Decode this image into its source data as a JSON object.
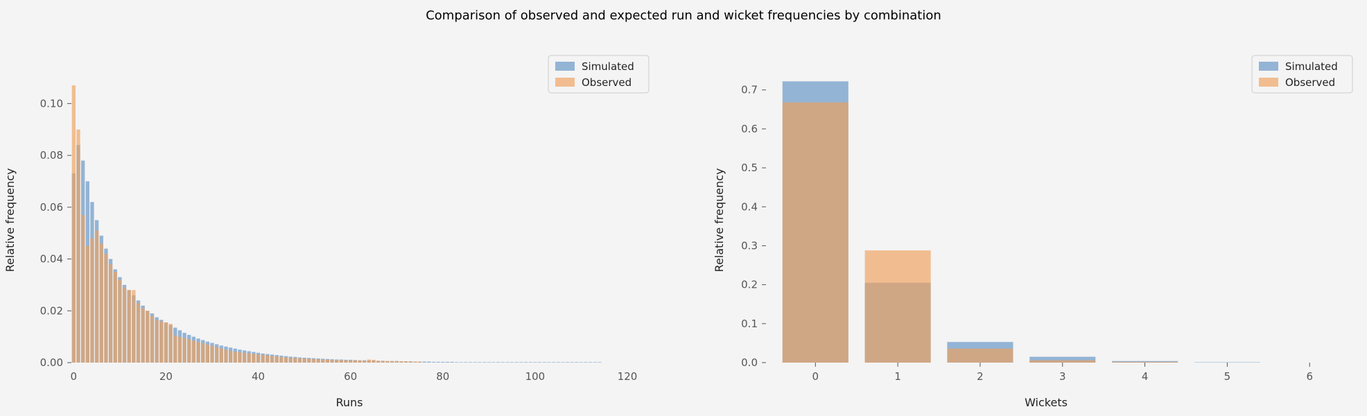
{
  "figure": {
    "title": "Comparison of observed and expected run and wicket frequencies by combination"
  },
  "colors": {
    "simulated": "#5f92c4",
    "observed": "#f0a05a",
    "background": "#f4f4f4"
  },
  "chart_data": [
    {
      "type": "bar",
      "xlabel": "Runs",
      "ylabel": "Relative frequency",
      "xlim": [
        -0.5,
        120
      ],
      "ylim": [
        0,
        0.11
      ],
      "xticks": [
        0,
        20,
        40,
        60,
        80,
        100,
        120
      ],
      "yticks": [
        0.0,
        0.02,
        0.04,
        0.06,
        0.08,
        0.1
      ],
      "ytick_labels": [
        "0.00",
        "0.02",
        "0.04",
        "0.06",
        "0.08",
        "0.10"
      ],
      "grid": false,
      "legend_position": "top-right",
      "series": [
        {
          "name": "Simulated",
          "x_start": 0,
          "values": [
            0.073,
            0.084,
            0.078,
            0.07,
            0.062,
            0.055,
            0.049,
            0.044,
            0.04,
            0.036,
            0.033,
            0.03,
            0.028,
            0.026,
            0.024,
            0.022,
            0.02,
            0.019,
            0.0175,
            0.0165,
            0.0155,
            0.0145,
            0.0135,
            0.0125,
            0.0115,
            0.0107,
            0.01,
            0.0093,
            0.0087,
            0.0081,
            0.0076,
            0.0071,
            0.0066,
            0.0062,
            0.0058,
            0.0054,
            0.005,
            0.0047,
            0.0044,
            0.0041,
            0.0038,
            0.0035,
            0.0033,
            0.0031,
            0.0029,
            0.0027,
            0.0025,
            0.0023,
            0.0022,
            0.002,
            0.0019,
            0.0018,
            0.0017,
            0.0016,
            0.0015,
            0.0014,
            0.0013,
            0.0012,
            0.0012,
            0.0011,
            0.0011,
            0.001,
            0.0009,
            0.0009,
            0.0008,
            0.0008,
            0.0007,
            0.0007,
            0.0006,
            0.0006,
            0.0006,
            0.0005,
            0.0005,
            0.0005,
            0.0004,
            0.0004,
            0.0004,
            0.0004,
            0.0003,
            0.0003,
            0.0003,
            0.0003,
            0.0003,
            0.0002,
            0.0002,
            0.0002,
            0.0002,
            0.0002,
            0.0002,
            0.0002,
            0.0002,
            0.0002,
            0.0002,
            0.0002,
            0.0002,
            0.0002,
            0.0002,
            0.0002,
            0.0002,
            0.0002,
            0.0002,
            0.0002,
            0.0002,
            0.0002,
            0.0002,
            0.0002,
            0.0002,
            0.0002,
            0.0002,
            0.0002,
            0.0002,
            0.0002,
            0.0002,
            0.0002,
            0.0002
          ]
        },
        {
          "name": "Observed",
          "x_start": 0,
          "values": [
            0.107,
            0.09,
            0.057,
            0.045,
            0.048,
            0.051,
            0.046,
            0.042,
            0.038,
            0.035,
            0.032,
            0.029,
            0.028,
            0.028,
            0.023,
            0.021,
            0.02,
            0.018,
            0.0165,
            0.016,
            0.0155,
            0.015,
            0.0105,
            0.01,
            0.0095,
            0.009,
            0.0085,
            0.008,
            0.0075,
            0.007,
            0.0065,
            0.006,
            0.0055,
            0.005,
            0.0045,
            0.0042,
            0.004,
            0.0038,
            0.0036,
            0.0034,
            0.0032,
            0.003,
            0.0028,
            0.0026,
            0.0024,
            0.0022,
            0.002,
            0.0019,
            0.0018,
            0.0017,
            0.0016,
            0.0015,
            0.0014,
            0.0013,
            0.0012,
            0.0011,
            0.0011,
            0.001,
            0.001,
            0.0009,
            0.0009,
            0.0009,
            0.0008,
            0.0008,
            0.0012,
            0.0011,
            0.0007,
            0.0007,
            0.0006,
            0.0006,
            0.0006,
            0.0005,
            0.0005,
            0.0005,
            0.0004,
            0.0004
          ]
        }
      ]
    },
    {
      "type": "bar",
      "xlabel": "Wickets",
      "ylabel": "Relative frequency",
      "xlim": [
        -0.6,
        6.2
      ],
      "ylim": [
        0,
        0.7315
      ],
      "xticks": [
        0,
        1,
        2,
        3,
        4,
        5,
        6
      ],
      "yticks": [
        0.0,
        0.1,
        0.2,
        0.3,
        0.4,
        0.5,
        0.6,
        0.7
      ],
      "ytick_labels": [
        "0.0",
        "0.1",
        "0.2",
        "0.3",
        "0.4",
        "0.5",
        "0.6",
        "0.7"
      ],
      "grid": false,
      "legend_position": "top-right",
      "series": [
        {
          "name": "Simulated",
          "x_start": 0,
          "values": [
            0.722,
            0.205,
            0.053,
            0.015,
            0.004,
            0.001
          ]
        },
        {
          "name": "Observed",
          "x_start": 0,
          "values": [
            0.668,
            0.288,
            0.036,
            0.006,
            0.002,
            0.0
          ]
        }
      ]
    }
  ]
}
